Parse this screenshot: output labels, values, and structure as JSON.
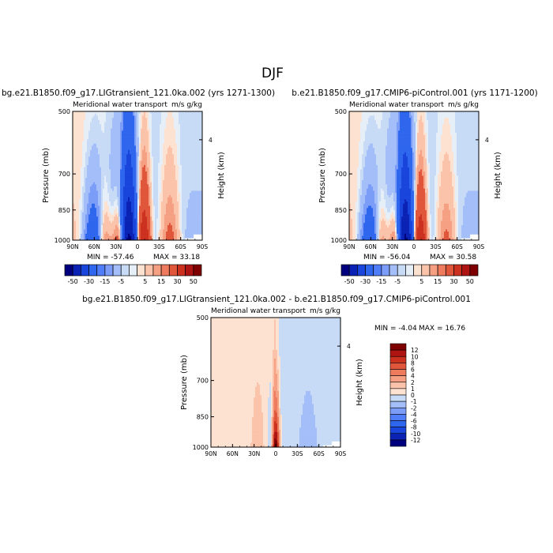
{
  "page_title": "DJF",
  "chart_data": [
    {
      "type": "heatmap",
      "title": "bg.e21.B1850.f09_g17.LIGtransient_121.0ka.002 (yrs 1271-1300)",
      "subtitle": "Meridional water transport",
      "units": "m/s g/kg",
      "ylabel": "Pressure (mb)",
      "ylabel_right": "Height (km)",
      "xticks": [
        "90N",
        "60N",
        "30N",
        "0",
        "30S",
        "60S",
        "90S"
      ],
      "yticks": [
        "500",
        "700",
        "850",
        "1000"
      ],
      "ylim": [
        1000,
        500
      ],
      "right_ticks": [
        "4"
      ],
      "min_label": "MIN = -57.46",
      "max_label": "MAX = 33.18",
      "colorbar_labels": [
        "-50",
        "-30",
        "-15",
        "-5",
        "5",
        "15",
        "30",
        "50"
      ],
      "colorbar_colors": [
        "#00007f",
        "#0a23b4",
        "#1945dc",
        "#2f66ee",
        "#507ef8",
        "#7b9df8",
        "#a3bef8",
        "#c7daf6",
        "#e6eef8",
        "#fde2d1",
        "#fbc3aa",
        "#f6a083",
        "#ee7b5e",
        "#e0563b",
        "#cc3120",
        "#ae1412",
        "#7f0000"
      ],
      "fields": {
        "south_sign": -1,
        "tropical_neg": -55,
        "tropical_pos": 33
      }
    },
    {
      "type": "heatmap",
      "title": "b.e21.B1850.f09_g17.CMIP6-piControl.001 (yrs 1171-1200)",
      "subtitle": "Meridional water transport",
      "units": "m/s g/kg",
      "ylabel": "Pressure (mb)",
      "ylabel_right": "Height (km)",
      "xticks": [
        "90N",
        "60N",
        "30N",
        "0",
        "30S",
        "60S",
        "90S"
      ],
      "yticks": [
        "500",
        "700",
        "850",
        "1000"
      ],
      "ylim": [
        1000,
        500
      ],
      "right_ticks": [
        "4"
      ],
      "min_label": "MIN = -56.04",
      "max_label": "MAX = 30.58",
      "colorbar_labels": [
        "-50",
        "-30",
        "-15",
        "-5",
        "5",
        "15",
        "30",
        "50"
      ],
      "colorbar_colors": [
        "#00007f",
        "#0a23b4",
        "#1945dc",
        "#2f66ee",
        "#507ef8",
        "#7b9df8",
        "#a3bef8",
        "#c7daf6",
        "#e6eef8",
        "#fde2d1",
        "#fbc3aa",
        "#f6a083",
        "#ee7b5e",
        "#e0563b",
        "#cc3120",
        "#ae1412",
        "#7f0000"
      ],
      "fields": {
        "south_sign": -1,
        "tropical_neg": -54,
        "tropical_pos": 30
      }
    },
    {
      "type": "heatmap",
      "title": "bg.e21.B1850.f09_g17.LIGtransient_121.0ka.002 - b.e21.B1850.f09_g17.CMIP6-piControl.001",
      "subtitle": "Meridional water transport",
      "units": "m/s g/kg",
      "ylabel": "Pressure (mb)",
      "ylabel_right": "Height (km)",
      "xticks": [
        "90N",
        "60N",
        "30N",
        "0",
        "30S",
        "60S",
        "90S"
      ],
      "yticks": [
        "500",
        "700",
        "850",
        "1000"
      ],
      "ylim": [
        1000,
        500
      ],
      "right_ticks": [
        "4"
      ],
      "min_label": "MIN = -4.04",
      "max_label": "MAX = 16.76",
      "colorbar_labels": [
        "12",
        "10",
        "8",
        "6",
        "4",
        "2",
        "1",
        "0",
        "-1",
        "-2",
        "-4",
        "-6",
        "-8",
        "-10",
        "-12"
      ],
      "colorbar_colors": [
        "#7f0000",
        "#ae1412",
        "#cc3120",
        "#e0563b",
        "#ee7b5e",
        "#f6a083",
        "#fbc3aa",
        "#fde2d1",
        "#c7daf6",
        "#a3bef8",
        "#7b9df8",
        "#507ef8",
        "#2f66ee",
        "#1945dc",
        "#0a23b4",
        "#00007f"
      ],
      "fields": {
        "diff": true
      }
    }
  ]
}
